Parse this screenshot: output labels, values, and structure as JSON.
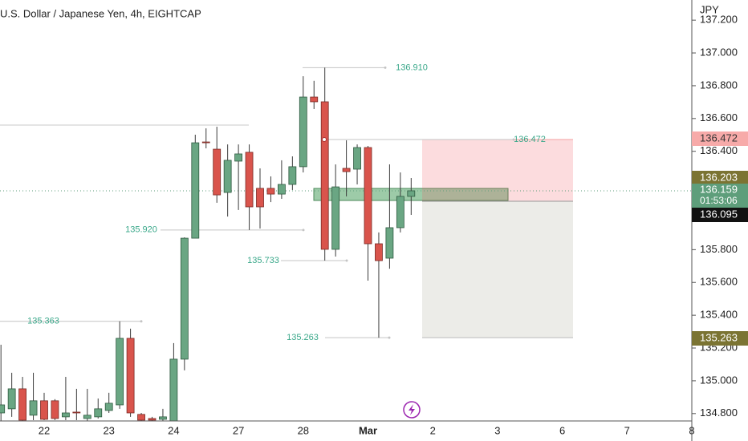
{
  "chart_data": {
    "type": "candlestick",
    "title": "U.S. Dollar / Japanese Yen, 4h, EIGHTCAP",
    "y_unit": "JPY",
    "categories": [
      null,
      null,
      null,
      null,
      "22",
      null,
      null,
      null,
      null,
      null,
      "23",
      null,
      null,
      null,
      null,
      null,
      "24",
      null,
      null,
      null,
      null,
      null,
      "27",
      null,
      null,
      null,
      null,
      null,
      "28",
      null,
      null,
      null,
      null,
      null,
      "Mar",
      null,
      null,
      null,
      null,
      null,
      "2",
      null,
      null,
      null,
      null,
      null,
      "3",
      null,
      null,
      null,
      null,
      null,
      "6",
      null,
      null,
      null,
      null,
      null,
      "7",
      null,
      null,
      null,
      null,
      null,
      "8"
    ],
    "open": [
      134.804,
      134.829,
      134.951,
      134.79,
      134.878,
      134.878,
      134.78,
      134.809,
      134.77,
      134.78,
      134.819,
      134.853,
      135.259,
      134.795,
      134.77,
      134.765,
      134.755,
      135.132,
      135.87,
      136.457,
      136.413,
      136.149,
      136.34,
      136.394,
      136.174,
      136.174,
      136.139,
      136.198,
      136.306,
      136.731,
      136.702,
      135.802,
      136.296,
      136.291,
      136.423,
      135.836,
      135.748,
      135.934,
      136.125,
      null,
      null,
      null,
      null,
      null,
      null,
      null,
      null,
      null,
      null,
      null,
      null,
      null,
      null,
      null,
      null,
      null,
      null,
      null,
      null,
      null,
      null,
      null,
      null,
      null,
      null
    ],
    "high": [
      135.22,
      135.049,
      135.024,
      135.049,
      134.927,
      134.888,
      135.024,
      134.951,
      134.951,
      134.892,
      134.927,
      135.363,
      135.318,
      134.804,
      134.78,
      134.829,
      135.23,
      135.875,
      136.501,
      136.54,
      136.55,
      136.442,
      136.442,
      136.442,
      136.296,
      136.247,
      136.345,
      136.369,
      136.858,
      136.83,
      136.91,
      136.32,
      136.467,
      136.442,
      136.433,
      135.905,
      136.32,
      136.271,
      136.237,
      null,
      null,
      null,
      null,
      null,
      null,
      null,
      null,
      null,
      null,
      null,
      null,
      null,
      null,
      null,
      null,
      null,
      null,
      null,
      null,
      null,
      null,
      null,
      null,
      null,
      null
    ],
    "low": [
      134.755,
      134.78,
      134.755,
      134.76,
      134.76,
      134.76,
      134.76,
      134.76,
      134.755,
      134.77,
      134.804,
      134.829,
      134.78,
      134.755,
      134.755,
      134.755,
      134.755,
      135.064,
      135.87,
      136.418,
      136.086,
      136.002,
      136.042,
      135.92,
      135.929,
      136.09,
      136.11,
      136.164,
      136.271,
      136.658,
      135.733,
      135.758,
      136.125,
      136.198,
      135.611,
      135.263,
      135.684,
      135.905,
      136.012,
      null,
      null,
      null,
      null,
      null,
      null,
      null,
      null,
      null,
      null,
      null,
      null,
      null,
      null,
      null,
      null,
      null,
      null,
      null,
      null,
      null,
      null,
      null,
      null,
      null,
      null
    ],
    "close": [
      134.853,
      134.951,
      134.76,
      134.878,
      134.765,
      134.77,
      134.804,
      134.804,
      134.79,
      134.829,
      134.863,
      135.259,
      134.804,
      134.76,
      134.76,
      134.78,
      135.132,
      135.87,
      136.452,
      136.452,
      136.134,
      136.345,
      136.384,
      136.061,
      136.061,
      136.139,
      136.198,
      136.306,
      136.731,
      136.702,
      135.802,
      136.183,
      136.276,
      136.423,
      135.836,
      135.733,
      135.934,
      136.125,
      136.159,
      null,
      null,
      null,
      null,
      null,
      null,
      null,
      null,
      null,
      null,
      null,
      null,
      null,
      null,
      null,
      null,
      null,
      null,
      null,
      null,
      null,
      null,
      null,
      null,
      null,
      null
    ],
    "up_color": "#6aa683",
    "down_color": "#d9544c",
    "wick_color": "#3b3b3b",
    "ylim": [
      134.755,
      137.323
    ],
    "yticks": [
      {
        "value": 137.2,
        "label": "137.200"
      },
      {
        "value": 137.0,
        "label": "137.000"
      },
      {
        "value": 136.8,
        "label": "136.800"
      },
      {
        "value": 136.6,
        "label": "136.600"
      },
      {
        "value": 136.4,
        "label": "136.400"
      },
      {
        "value": 135.8,
        "label": "135.800"
      },
      {
        "value": 135.6,
        "label": "135.600"
      },
      {
        "value": 135.4,
        "label": "135.400"
      },
      {
        "value": 135.2,
        "label": "135.200"
      },
      {
        "value": 135.0,
        "label": "135.000"
      },
      {
        "value": 134.8,
        "label": "134.800"
      }
    ],
    "annotations": [
      {
        "value": 136.91,
        "label": "136.910"
      },
      {
        "value": 136.472,
        "label": "136.472"
      },
      {
        "value": 135.92,
        "label": "135.920"
      },
      {
        "value": 135.733,
        "label": "135.733"
      },
      {
        "value": 135.363,
        "label": "135.363"
      },
      {
        "value": 135.263,
        "label": "135.263"
      }
    ],
    "position": {
      "stop": 136.472,
      "entry": 136.095,
      "target": 135.263
    },
    "current_price": {
      "value": 136.159,
      "label": "136.159",
      "countdown": "01:53:06",
      "color": "#5e9e7b"
    },
    "price_labels": [
      {
        "value": 136.472,
        "label": "136.472",
        "color": "#f7aaa9"
      },
      {
        "value": 136.203,
        "label": "136.203",
        "color": "#7b7433"
      },
      {
        "value": 136.095,
        "label": "136.095",
        "color": "#111111"
      },
      {
        "value": 135.263,
        "label": "135.263",
        "color": "#7b7433"
      }
    ]
  }
}
